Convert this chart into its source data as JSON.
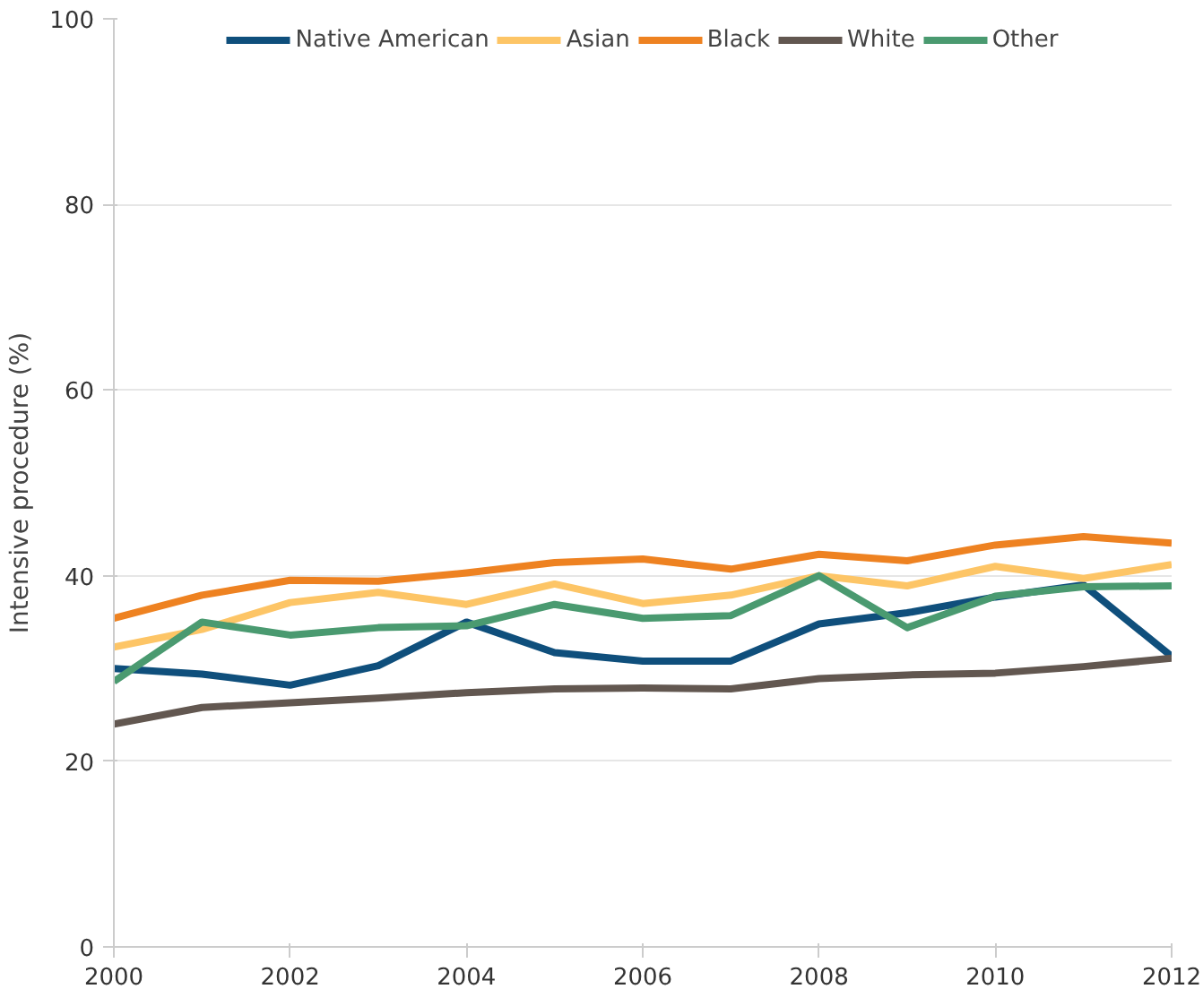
{
  "chart_data": {
    "type": "line",
    "ylabel": "Intensive procedure (%)",
    "x": [
      2000,
      2001,
      2002,
      2003,
      2004,
      2005,
      2006,
      2007,
      2008,
      2009,
      2010,
      2011,
      2012
    ],
    "xlim": [
      2000,
      2012
    ],
    "xticks": [
      2000,
      2002,
      2004,
      2006,
      2008,
      2010,
      2012
    ],
    "ylim": [
      0,
      100
    ],
    "yticks": [
      0,
      20,
      40,
      60,
      80,
      100
    ],
    "grid": "y",
    "legend": "top",
    "line_style": "solid",
    "marker": "none",
    "series": [
      {
        "name": "Native American",
        "color": "#0f4f7c",
        "values": [
          30.0,
          29.4,
          28.2,
          30.3,
          35.0,
          31.7,
          30.8,
          30.8,
          34.8,
          36.0,
          37.7,
          39.0,
          31.3
        ]
      },
      {
        "name": "Asian",
        "color": "#fdc566",
        "values": [
          32.3,
          34.2,
          37.1,
          38.2,
          36.9,
          39.1,
          37.0,
          37.9,
          40.0,
          38.9,
          41.0,
          39.7,
          41.2
        ]
      },
      {
        "name": "Black",
        "color": "#ee8221",
        "values": [
          35.4,
          37.9,
          39.5,
          39.4,
          40.3,
          41.4,
          41.8,
          40.7,
          42.3,
          41.6,
          43.3,
          44.2,
          43.5
        ]
      },
      {
        "name": "White",
        "color": "#625750",
        "values": [
          24.0,
          25.8,
          26.3,
          26.8,
          27.4,
          27.8,
          27.9,
          27.8,
          28.9,
          29.3,
          29.5,
          30.2,
          31.1
        ]
      },
      {
        "name": "Other",
        "color": "#4a9a70",
        "values": [
          28.6,
          35.0,
          33.6,
          34.4,
          34.6,
          36.9,
          35.4,
          35.7,
          40.0,
          34.4,
          37.8,
          38.8,
          38.9
        ]
      }
    ]
  }
}
